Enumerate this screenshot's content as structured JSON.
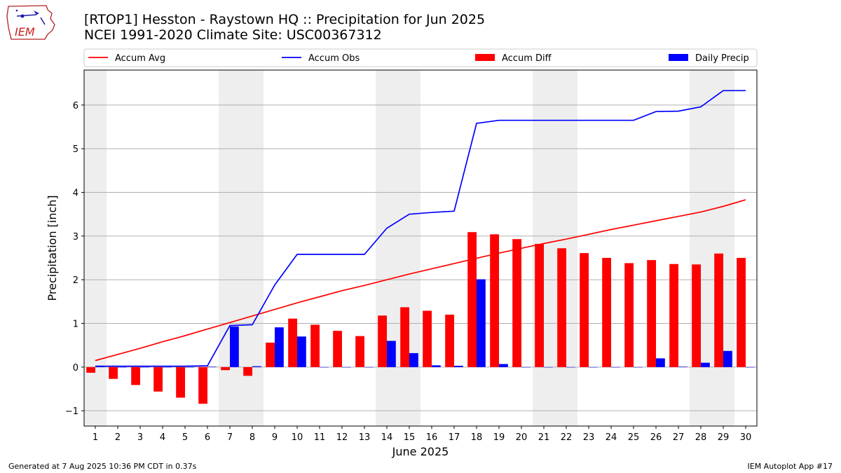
{
  "header": {
    "title_line1": "[RTOP1] Hesston - Raystown HQ :: Precipitation for Jun 2025",
    "title_line2": "NCEI 1991-2020 Climate Site: USC00367312"
  },
  "logo": {
    "text": "IEM",
    "icon": "iem-logo-icon"
  },
  "footer": {
    "left": "Generated at 7 Aug 2025 10:36 PM CDT in 0.37s",
    "right": "IEM Autoplot App #17"
  },
  "colors": {
    "accum_avg": "#ff0000",
    "accum_obs": "#0000ff",
    "accum_diff": "#ff0000",
    "daily_precip": "#0000ff",
    "weekend_shade": "#eeeeee",
    "grid": "#b0b0b0"
  },
  "chart_data": {
    "type": "bar",
    "xlabel": "June 2025",
    "ylabel": "Precipitation [inch]",
    "ylim": [
      -1.35,
      6.8
    ],
    "yticks": [
      -1,
      0,
      1,
      2,
      3,
      4,
      5,
      6
    ],
    "grid": "horizontal",
    "legend_position": "top",
    "categories": [
      "1",
      "2",
      "3",
      "4",
      "5",
      "6",
      "7",
      "8",
      "9",
      "10",
      "11",
      "12",
      "13",
      "14",
      "15",
      "16",
      "17",
      "18",
      "19",
      "20",
      "21",
      "22",
      "23",
      "24",
      "25",
      "26",
      "27",
      "28",
      "29",
      "30"
    ],
    "shaded_weekend_days": [
      1,
      7,
      8,
      14,
      15,
      21,
      22,
      28,
      29
    ],
    "series": [
      {
        "name": "Accum Avg",
        "kind": "line",
        "values": [
          0.15,
          0.29,
          0.43,
          0.58,
          0.72,
          0.87,
          1.02,
          1.17,
          1.32,
          1.47,
          1.61,
          1.75,
          1.87,
          2.0,
          2.13,
          2.25,
          2.37,
          2.49,
          2.61,
          2.72,
          2.83,
          2.93,
          3.04,
          3.15,
          3.25,
          3.35,
          3.45,
          3.55,
          3.68,
          3.83
        ]
      },
      {
        "name": "Accum Obs",
        "kind": "line",
        "values": [
          0.02,
          0.02,
          0.02,
          0.02,
          0.02,
          0.03,
          0.95,
          0.97,
          1.88,
          2.58,
          2.58,
          2.58,
          2.58,
          3.18,
          3.5,
          3.54,
          3.57,
          5.58,
          5.65,
          5.65,
          5.65,
          5.65,
          5.65,
          5.65,
          5.65,
          5.85,
          5.86,
          5.96,
          6.33,
          6.33
        ]
      },
      {
        "name": "Accum Diff",
        "kind": "bar",
        "values": [
          -0.13,
          -0.27,
          -0.41,
          -0.56,
          -0.7,
          -0.84,
          -0.07,
          -0.2,
          0.56,
          1.11,
          0.97,
          0.83,
          0.71,
          1.18,
          1.37,
          1.29,
          1.2,
          3.09,
          3.04,
          2.93,
          2.82,
          2.72,
          2.61,
          2.5,
          2.38,
          2.45,
          2.36,
          2.35,
          2.6,
          2.5
        ]
      },
      {
        "name": "Daily Precip",
        "kind": "bar",
        "values": [
          0.02,
          0.0,
          0.0,
          0.0,
          0.0,
          0.01,
          0.93,
          0.02,
          0.91,
          0.7,
          0.0,
          0.0,
          0.0,
          0.6,
          0.32,
          0.04,
          0.03,
          2.01,
          0.07,
          0.0,
          0.0,
          0.0,
          0.0,
          0.0,
          0.0,
          0.2,
          0.01,
          0.1,
          0.37,
          0.0
        ]
      }
    ]
  }
}
